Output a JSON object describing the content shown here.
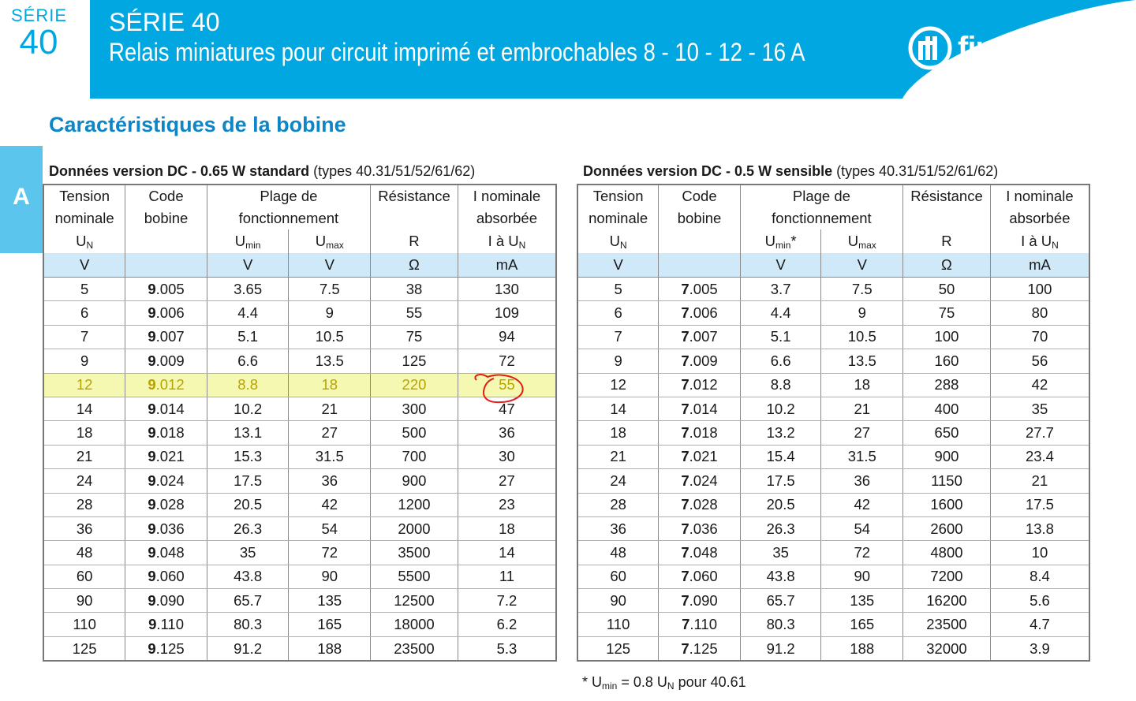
{
  "header": {
    "serie_label": "SÉRIE",
    "serie_number": "40",
    "title_line1": "SÉRIE 40",
    "title_line2": "Relais miniatures pour circuit imprimé et embrochables 8 - 10 - 12 - 16 A",
    "logo_text": "finder",
    "band_color": "#00a7e0"
  },
  "side_tab": "A",
  "section_title": "Caractéristiques de la bobine",
  "tables": [
    {
      "caption_bold": "Données version DC - 0.65 W standard",
      "caption_rest": " (types 40.31/51/52/61/62)",
      "head": {
        "tension1": "Tension",
        "tension2": "nominale",
        "tension3": "U",
        "tension3_sub": "N",
        "code1": "Code",
        "code2": "bobine",
        "plage1": "Plage de",
        "plage2": "fonctionnement",
        "umin": "U",
        "umin_sub": "min",
        "umax": "U",
        "umax_sub": "max",
        "res1": "Résistance",
        "res3": "R",
        "inom1": "I nominale",
        "inom2": "absorbée",
        "inom3": "I à U",
        "inom3_sub": "N"
      },
      "units": [
        "V",
        "",
        "V",
        "V",
        "Ω",
        "mA"
      ],
      "rows": [
        [
          "5",
          "9",
          ".005",
          "3.65",
          "7.5",
          "38",
          "130"
        ],
        [
          "6",
          "9",
          ".006",
          "4.4",
          "9",
          "55",
          "109"
        ],
        [
          "7",
          "9",
          ".007",
          "5.1",
          "10.5",
          "75",
          "94"
        ],
        [
          "9",
          "9",
          ".009",
          "6.6",
          "13.5",
          "125",
          "72"
        ],
        [
          "12",
          "9",
          ".012",
          "8.8",
          "18",
          "220",
          "55"
        ],
        [
          "14",
          "9",
          ".014",
          "10.2",
          "21",
          "300",
          "47"
        ],
        [
          "18",
          "9",
          ".018",
          "13.1",
          "27",
          "500",
          "36"
        ],
        [
          "21",
          "9",
          ".021",
          "15.3",
          "31.5",
          "700",
          "30"
        ],
        [
          "24",
          "9",
          ".024",
          "17.5",
          "36",
          "900",
          "27"
        ],
        [
          "28",
          "9",
          ".028",
          "20.5",
          "42",
          "1200",
          "23"
        ],
        [
          "36",
          "9",
          ".036",
          "26.3",
          "54",
          "2000",
          "18"
        ],
        [
          "48",
          "9",
          ".048",
          "35",
          "72",
          "3500",
          "14"
        ],
        [
          "60",
          "9",
          ".060",
          "43.8",
          "90",
          "5500",
          "11"
        ],
        [
          "90",
          "9",
          ".090",
          "65.7",
          "135",
          "12500",
          "7.2"
        ],
        [
          "110",
          "9",
          ".110",
          "80.3",
          "165",
          "18000",
          "6.2"
        ],
        [
          "125",
          "9",
          ".125",
          "91.2",
          "188",
          "23500",
          "5.3"
        ]
      ],
      "highlight_row": 4
    },
    {
      "caption_bold": "Données version DC - 0.5 W sensible",
      "caption_rest": " (types 40.31/51/52/61/62)",
      "head": {
        "tension1": "Tension",
        "tension2": "nominale",
        "tension3": "U",
        "tension3_sub": "N",
        "code1": "Code",
        "code2": "bobine",
        "plage1": "Plage de",
        "plage2": "fonctionnement",
        "umin": "U",
        "umin_sub": "min",
        "umin_star": "*",
        "umax": "U",
        "umax_sub": "max",
        "res1": "Résistance",
        "res3": "R",
        "inom1": "I nominale",
        "inom2": "absorbée",
        "inom3": "I à U",
        "inom3_sub": "N"
      },
      "units": [
        "V",
        "",
        "V",
        "V",
        "Ω",
        "mA"
      ],
      "rows": [
        [
          "5",
          "7",
          ".005",
          "3.7",
          "7.5",
          "50",
          "100"
        ],
        [
          "6",
          "7",
          ".006",
          "4.4",
          "9",
          "75",
          "80"
        ],
        [
          "7",
          "7",
          ".007",
          "5.1",
          "10.5",
          "100",
          "70"
        ],
        [
          "9",
          "7",
          ".009",
          "6.6",
          "13.5",
          "160",
          "56"
        ],
        [
          "12",
          "7",
          ".012",
          "8.8",
          "18",
          "288",
          "42"
        ],
        [
          "14",
          "7",
          ".014",
          "10.2",
          "21",
          "400",
          "35"
        ],
        [
          "18",
          "7",
          ".018",
          "13.2",
          "27",
          "650",
          "27.7"
        ],
        [
          "21",
          "7",
          ".021",
          "15.4",
          "31.5",
          "900",
          "23.4"
        ],
        [
          "24",
          "7",
          ".024",
          "17.5",
          "36",
          "1150",
          "21"
        ],
        [
          "28",
          "7",
          ".028",
          "20.5",
          "42",
          "1600",
          "17.5"
        ],
        [
          "36",
          "7",
          ".036",
          "26.3",
          "54",
          "2600",
          "13.8"
        ],
        [
          "48",
          "7",
          ".048",
          "35",
          "72",
          "4800",
          "10"
        ],
        [
          "60",
          "7",
          ".060",
          "43.8",
          "90",
          "7200",
          "8.4"
        ],
        [
          "90",
          "7",
          ".090",
          "65.7",
          "135",
          "16200",
          "5.6"
        ],
        [
          "110",
          "7",
          ".110",
          "80.3",
          "165",
          "23500",
          "4.7"
        ],
        [
          "125",
          "7",
          ".125",
          "91.2",
          "188",
          "32000",
          "3.9"
        ]
      ],
      "highlight_row": -1
    }
  ],
  "footnote": {
    "star": "* U",
    "sub1": "min",
    "mid": " = 0.8 U",
    "sub2": "N",
    "rest": " pour 40.61"
  }
}
